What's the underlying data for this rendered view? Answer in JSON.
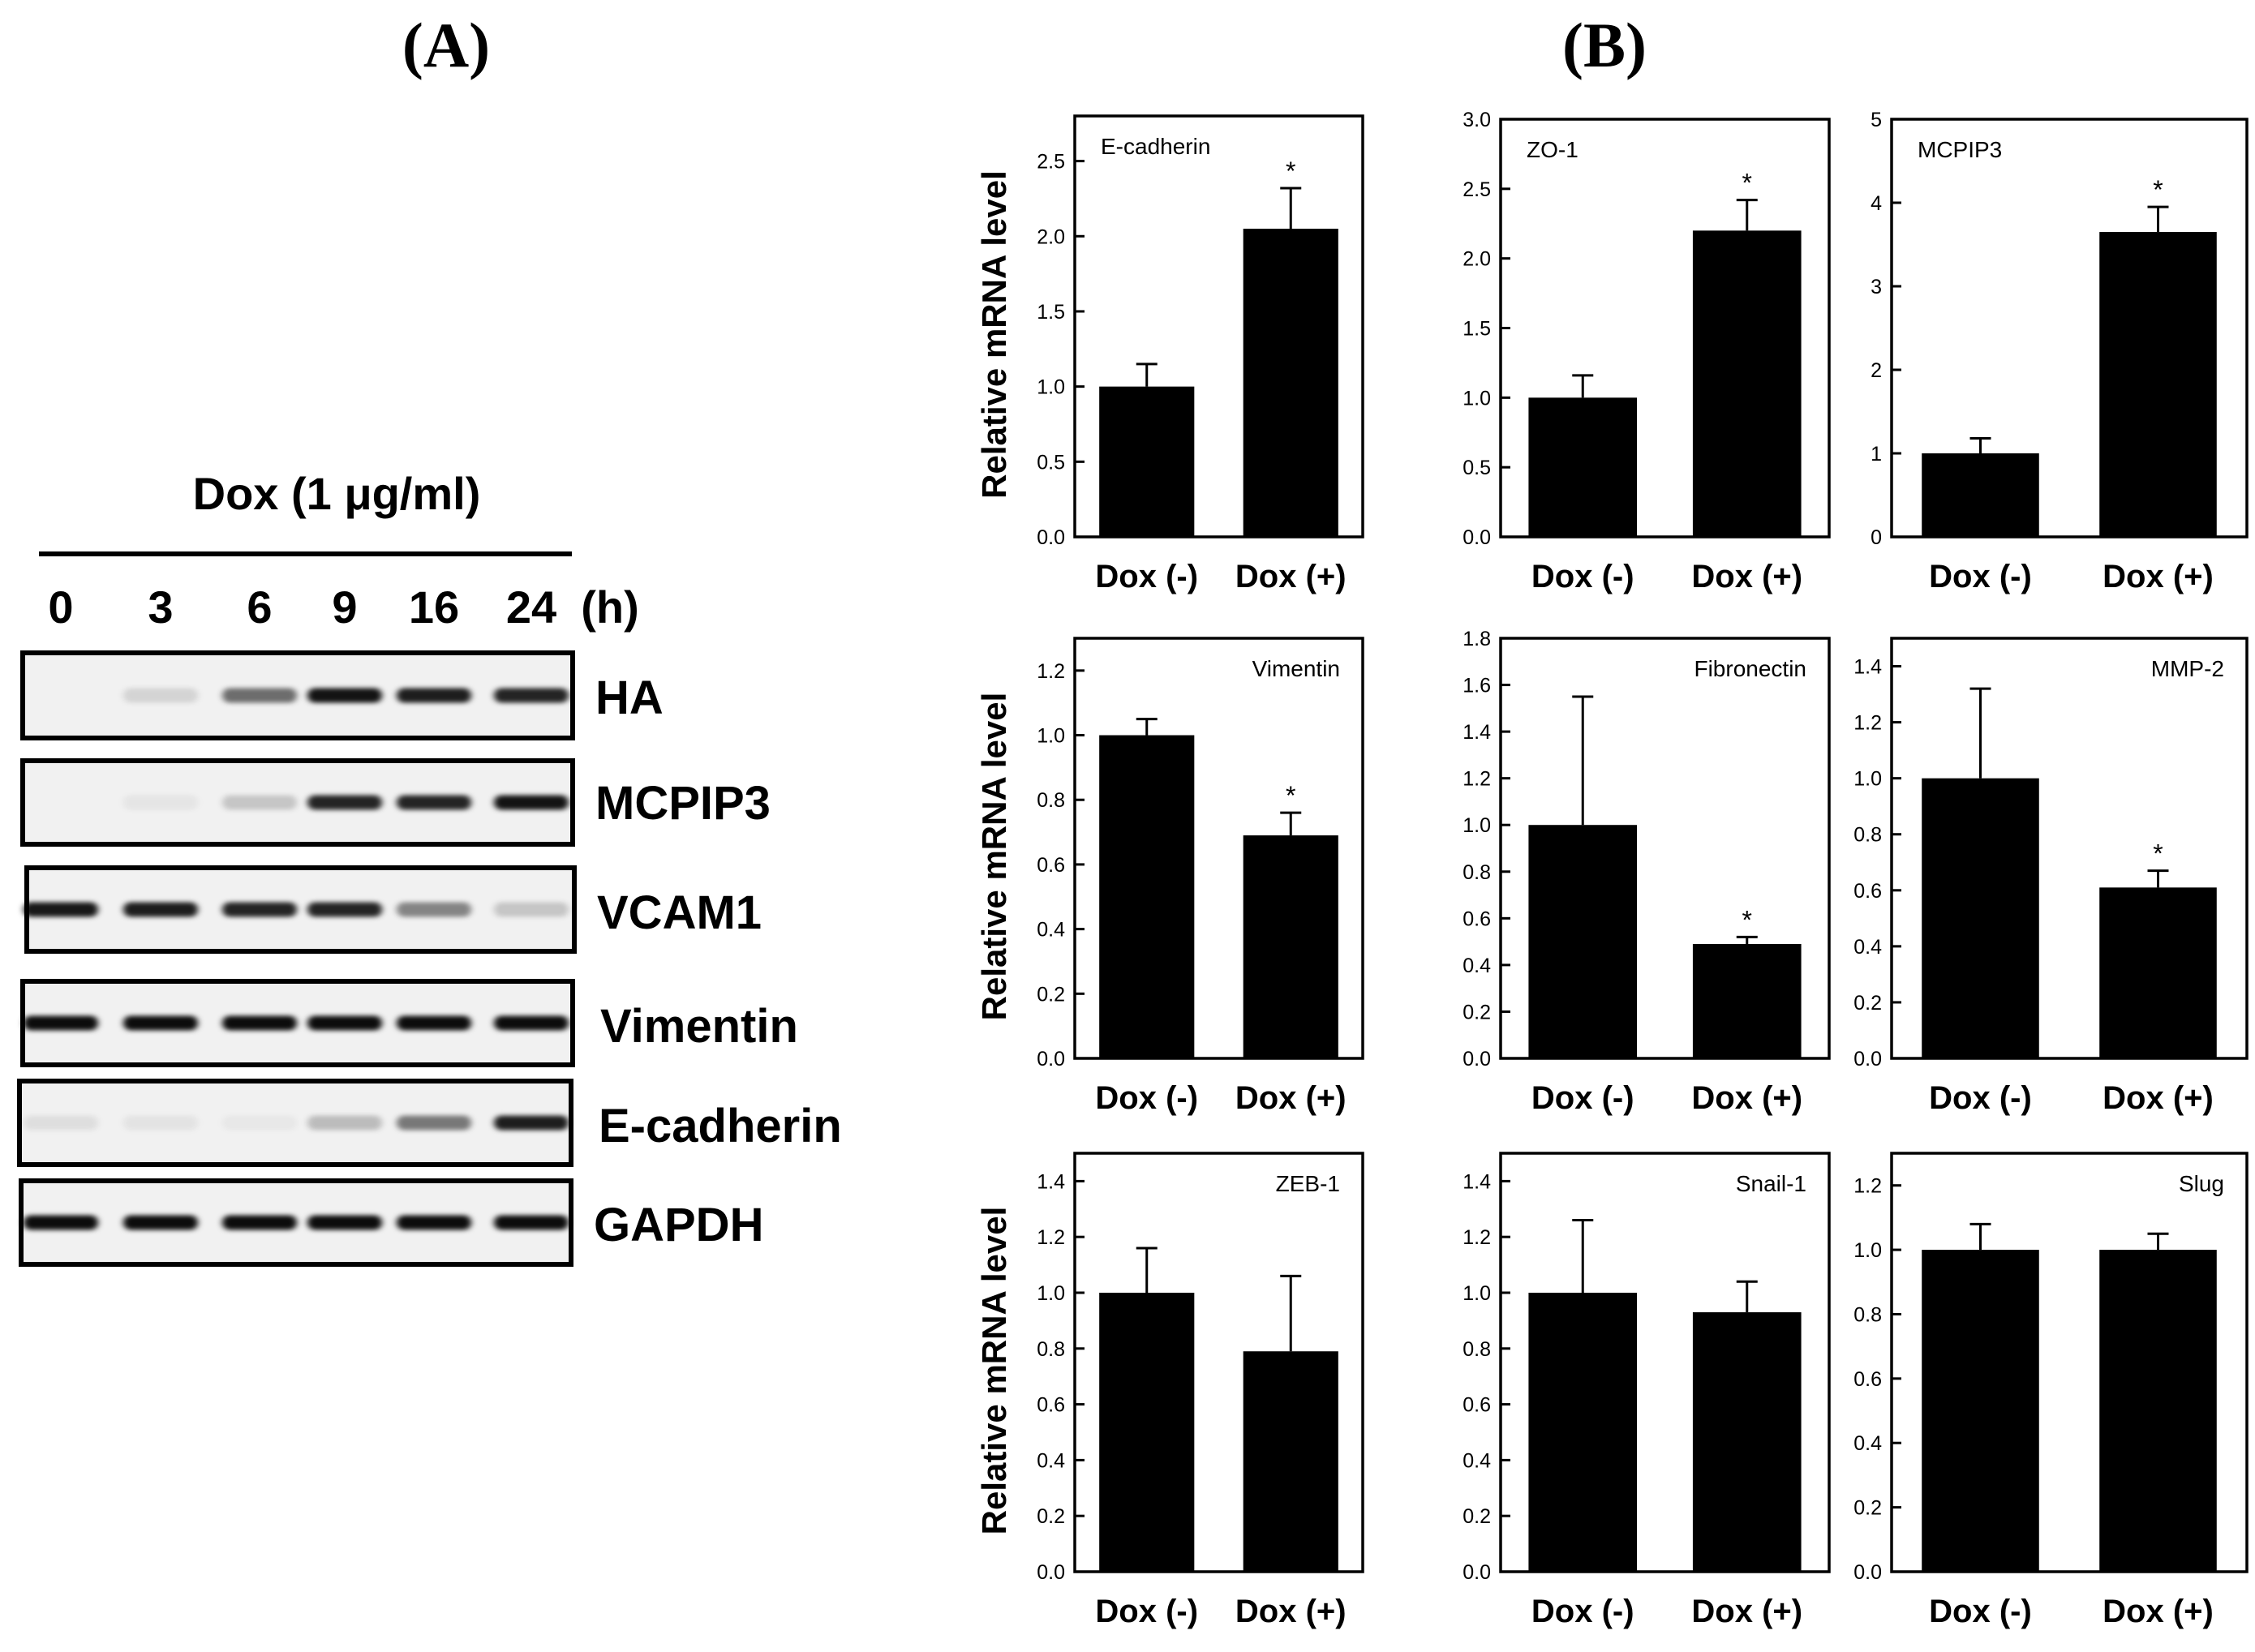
{
  "panel_a": {
    "label": "(A)",
    "treatment": "Dox (1 μg/ml)",
    "timepoints": [
      "0",
      "3",
      "6",
      "9",
      "16",
      "24"
    ],
    "time_unit": "(h)",
    "blots": [
      {
        "name": "HA",
        "intensities": [
          0.0,
          0.12,
          0.55,
          0.92,
          0.88,
          0.85
        ]
      },
      {
        "name": "MCPIP3",
        "intensities": [
          0.0,
          0.05,
          0.18,
          0.85,
          0.85,
          0.92
        ]
      },
      {
        "name": "VCAM1",
        "intensities": [
          0.9,
          0.88,
          0.85,
          0.85,
          0.45,
          0.18
        ]
      },
      {
        "name": "Vimentin",
        "intensities": [
          0.95,
          0.95,
          0.95,
          0.95,
          0.95,
          0.95
        ]
      },
      {
        "name": "E-cadherin",
        "intensities": [
          0.08,
          0.06,
          0.04,
          0.22,
          0.5,
          0.88
        ]
      },
      {
        "name": "GAPDH",
        "intensities": [
          0.95,
          0.95,
          0.95,
          0.95,
          0.95,
          0.95
        ]
      }
    ]
  },
  "panel_b": {
    "label": "(B)"
  },
  "chart_data": [
    {
      "type": "bar",
      "title": "E-cadherin",
      "title_pos": "top-left",
      "ylabel": "Relative mRNA level",
      "categories": [
        "Dox (-)",
        "Dox (+)"
      ],
      "values": [
        1.0,
        2.05
      ],
      "errors": [
        0.15,
        0.27
      ],
      "significance": [
        "",
        "*"
      ],
      "ylim": [
        0,
        2.8
      ],
      "yticks": [
        "0.0",
        "0.5",
        "1.0",
        "1.5",
        "2.0",
        "2.5"
      ]
    },
    {
      "type": "bar",
      "title": "ZO-1",
      "title_pos": "top-left",
      "ylabel": "",
      "categories": [
        "Dox (-)",
        "Dox (+)"
      ],
      "values": [
        1.0,
        2.2
      ],
      "errors": [
        0.16,
        0.22
      ],
      "significance": [
        "",
        "*"
      ],
      "ylim": [
        0,
        3.0
      ],
      "yticks": [
        "0.0",
        "0.5",
        "1.0",
        "1.5",
        "2.0",
        "2.5",
        "3.0"
      ]
    },
    {
      "type": "bar",
      "title": "MCPIP3",
      "title_pos": "top-left",
      "ylabel": "",
      "categories": [
        "Dox (-)",
        "Dox (+)"
      ],
      "values": [
        1.0,
        3.65
      ],
      "errors": [
        0.18,
        0.3
      ],
      "significance": [
        "",
        "*"
      ],
      "ylim": [
        0,
        5
      ],
      "yticks": [
        "0",
        "1",
        "2",
        "3",
        "4",
        "5"
      ]
    },
    {
      "type": "bar",
      "title": "Vimentin",
      "title_pos": "top-right",
      "ylabel": "Relative mRNA level",
      "categories": [
        "Dox (-)",
        "Dox (+)"
      ],
      "values": [
        1.0,
        0.69
      ],
      "errors": [
        0.05,
        0.07
      ],
      "significance": [
        "",
        "*"
      ],
      "ylim": [
        0,
        1.3
      ],
      "yticks": [
        "0.0",
        "0.2",
        "0.4",
        "0.6",
        "0.8",
        "1.0",
        "1.2"
      ]
    },
    {
      "type": "bar",
      "title": "Fibronectin",
      "title_pos": "top-right",
      "ylabel": "",
      "categories": [
        "Dox (-)",
        "Dox (+)"
      ],
      "values": [
        1.0,
        0.49
      ],
      "errors": [
        0.55,
        0.03
      ],
      "significance": [
        "",
        "*"
      ],
      "ylim": [
        0,
        1.8
      ],
      "yticks": [
        "0.0",
        "0.2",
        "0.4",
        "0.6",
        "0.8",
        "1.0",
        "1.2",
        "1.4",
        "1.6",
        "1.8"
      ]
    },
    {
      "type": "bar",
      "title": "MMP-2",
      "title_pos": "top-right",
      "ylabel": "",
      "categories": [
        "Dox (-)",
        "Dox (+)"
      ],
      "values": [
        1.0,
        0.61
      ],
      "errors": [
        0.32,
        0.06
      ],
      "significance": [
        "",
        "*"
      ],
      "ylim": [
        0,
        1.5
      ],
      "yticks": [
        "0.0",
        "0.2",
        "0.4",
        "0.6",
        "0.8",
        "1.0",
        "1.2",
        "1.4"
      ]
    },
    {
      "type": "bar",
      "title": "ZEB-1",
      "title_pos": "top-right",
      "ylabel": "Relative mRNA level",
      "categories": [
        "Dox (-)",
        "Dox (+)"
      ],
      "values": [
        1.0,
        0.79
      ],
      "errors": [
        0.16,
        0.27
      ],
      "significance": [
        "",
        ""
      ],
      "ylim": [
        0,
        1.5
      ],
      "yticks": [
        "0.0",
        "0.2",
        "0.4",
        "0.6",
        "0.8",
        "1.0",
        "1.2",
        "1.4"
      ]
    },
    {
      "type": "bar",
      "title": "Snail-1",
      "title_pos": "top-right",
      "ylabel": "",
      "categories": [
        "Dox (-)",
        "Dox (+)"
      ],
      "values": [
        1.0,
        0.93
      ],
      "errors": [
        0.26,
        0.11
      ],
      "significance": [
        "",
        ""
      ],
      "ylim": [
        0,
        1.5
      ],
      "yticks": [
        "0.0",
        "0.2",
        "0.4",
        "0.6",
        "0.8",
        "1.0",
        "1.2",
        "1.4"
      ]
    },
    {
      "type": "bar",
      "title": "Slug",
      "title_pos": "top-right",
      "ylabel": "",
      "categories": [
        "Dox (-)",
        "Dox (+)"
      ],
      "values": [
        1.0,
        1.0
      ],
      "errors": [
        0.08,
        0.05
      ],
      "significance": [
        "",
        ""
      ],
      "ylim": [
        0,
        1.3
      ],
      "yticks": [
        "0.0",
        "0.2",
        "0.4",
        "0.6",
        "0.8",
        "1.0",
        "1.2"
      ]
    }
  ]
}
